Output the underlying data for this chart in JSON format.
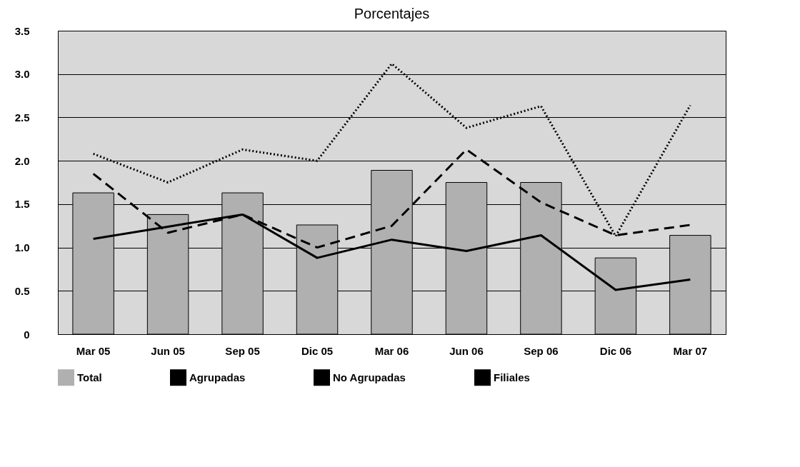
{
  "chart_data": {
    "type": "bar",
    "title": "Porcentajes",
    "categories": [
      "Mar 05",
      "Jun 05",
      "Sep 05",
      "Dic 05",
      "Mar 06",
      "Jun 06",
      "Sep 06",
      "Dic 06",
      "Mar 07"
    ],
    "series": [
      {
        "name": "Total",
        "color": "#b0b0b0",
        "values": [
          1.63,
          1.38,
          1.63,
          1.26,
          1.89,
          1.75,
          1.75,
          0.88,
          1.14
        ]
      },
      {
        "name": "Agrupadas",
        "type": "line",
        "color": "#000000",
        "line_style": "solid",
        "values": [
          1.1,
          1.24,
          1.38,
          0.88,
          1.09,
          0.96,
          1.14,
          0.51,
          0.63
        ]
      },
      {
        "name": "No Agrupadas",
        "type": "line",
        "color": "#000000",
        "line_style": "dotted",
        "values": [
          2.08,
          1.75,
          2.13,
          2.0,
          3.12,
          2.38,
          2.63,
          1.13,
          2.64
        ]
      },
      {
        "name": "Filiales",
        "type": "line",
        "color": "#000000",
        "line_style": "dashed",
        "values": [
          1.85,
          1.17,
          1.38,
          1.0,
          1.25,
          2.13,
          1.52,
          1.14,
          1.26
        ]
      }
    ],
    "ylim": [
      0,
      3.5
    ],
    "yticks": [
      0,
      {
        "value": 0.5,
        "label": "0.5"
      },
      {
        "value": 1,
        "label": "1.0"
      },
      {
        "value": 1.5,
        "label": "1.5"
      },
      {
        "value": 2,
        "label": "2.0"
      },
      {
        "value": 2.5,
        "label": "2.5"
      },
      {
        "value": 3,
        "label": "3.0"
      },
      {
        "value": 3.5,
        "label": "3.5"
      }
    ],
    "grid": "y",
    "legend": "bottom"
  }
}
